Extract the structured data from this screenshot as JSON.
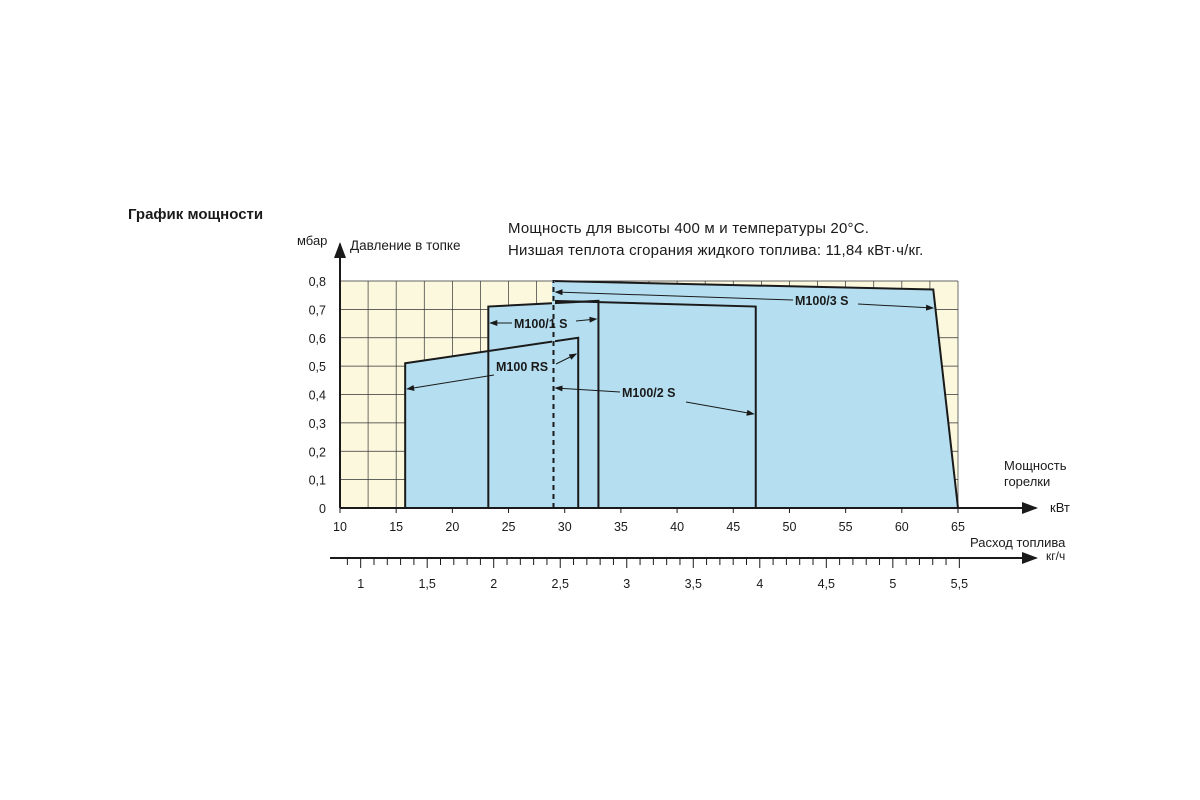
{
  "header": {
    "title": "График мощности",
    "note_line1": "Мощность для высоты 400 м и температуры 20°С.",
    "note_line2": "Низшая теплота сгорания жидкого топлива: 11,84 кВт·ч/кг."
  },
  "chart_data": {
    "type": "area",
    "title": "График мощности",
    "ylabel_unit": "мбар",
    "ylabel": "Давление в топке",
    "xlabel": "Мощность горелки",
    "xlabel_unit": "кВт",
    "xlim": [
      10,
      65
    ],
    "ylim": [
      0,
      0.8
    ],
    "x_ticks": [
      10,
      15,
      20,
      25,
      30,
      35,
      40,
      45,
      50,
      55,
      60,
      65
    ],
    "y_ticks": [
      0,
      0.1,
      0.2,
      0.3,
      0.4,
      0.5,
      0.6,
      0.7,
      0.8
    ],
    "x_tick_labels": [
      "10",
      "15",
      "20",
      "25",
      "30",
      "35",
      "40",
      "45",
      "50",
      "55",
      "60",
      "65"
    ],
    "y_tick_labels": [
      "0",
      "0,1",
      "0,2",
      "0,3",
      "0,4",
      "0,5",
      "0,6",
      "0,7",
      "0,8"
    ],
    "grid": true,
    "secondary_axis": {
      "label": "Расход топлива",
      "unit": "кг/ч",
      "tick_labels": [
        "1",
        "1,5",
        "2",
        "2,5",
        "3",
        "3,5",
        "4",
        "4,5",
        "5",
        "5,5"
      ],
      "tick_values": [
        1,
        1.5,
        2,
        2.5,
        3,
        3.5,
        4,
        4.5,
        5,
        5.5
      ]
    },
    "series": [
      {
        "name": "M100/3 S",
        "polygon": [
          [
            29,
            0
          ],
          [
            29,
            0.8
          ],
          [
            62.8,
            0.77
          ],
          [
            65,
            0
          ]
        ]
      },
      {
        "name": "M100/2 S",
        "polygon": [
          [
            29,
            0
          ],
          [
            29,
            0.73
          ],
          [
            47,
            0.71
          ],
          [
            47,
            0
          ]
        ]
      },
      {
        "name": "M100/1 S",
        "polygon": [
          [
            23.2,
            0
          ],
          [
            23.2,
            0.71
          ],
          [
            33,
            0.73
          ],
          [
            33,
            0
          ]
        ]
      },
      {
        "name": "M100 RS",
        "polygon": [
          [
            15.8,
            0
          ],
          [
            15.8,
            0.51
          ],
          [
            31.2,
            0.6
          ],
          [
            31.2,
            0
          ]
        ]
      }
    ],
    "colors": {
      "area_fill": "#b5dff0",
      "background": "#fbf8de",
      "grid": "#333333"
    }
  }
}
